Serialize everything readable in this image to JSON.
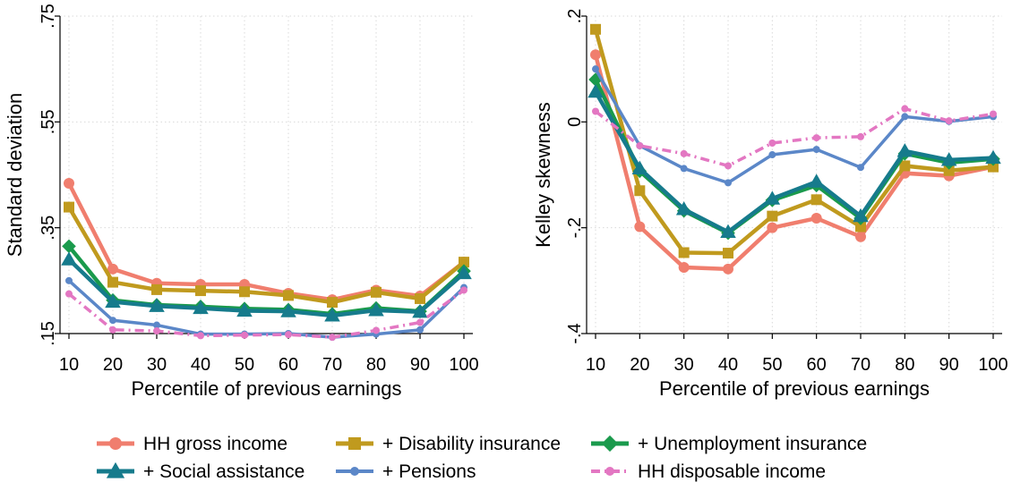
{
  "chart_data": [
    {
      "type": "line",
      "title": "",
      "xlabel": "Percentile of previous earnings",
      "ylabel": "Standard deviation",
      "x": [
        10,
        20,
        30,
        40,
        50,
        60,
        70,
        80,
        90,
        100
      ],
      "xticks": [
        "10",
        "20",
        "30",
        "40",
        "50",
        "60",
        "70",
        "80",
        "90",
        "100"
      ],
      "ylim": [
        0.15,
        0.75
      ],
      "yticks": [
        ".15",
        ".35",
        ".55",
        ".75"
      ],
      "yticks_values": [
        0.15,
        0.35,
        0.55,
        0.75
      ],
      "grid": true,
      "series": [
        {
          "name": "HH gross income",
          "values": [
            0.434,
            0.272,
            0.245,
            0.243,
            0.243,
            0.226,
            0.214,
            0.232,
            0.221,
            0.285
          ]
        },
        {
          "name": "+ Disability insurance",
          "values": [
            0.389,
            0.247,
            0.233,
            0.231,
            0.229,
            0.222,
            0.209,
            0.228,
            0.216,
            0.285
          ]
        },
        {
          "name": "+ Unemployment insurance",
          "values": [
            0.315,
            0.213,
            0.204,
            0.201,
            0.197,
            0.195,
            0.187,
            0.198,
            0.192,
            0.268
          ]
        },
        {
          "name": "+ Social assistance",
          "values": [
            0.29,
            0.21,
            0.202,
            0.198,
            0.193,
            0.192,
            0.184,
            0.194,
            0.191,
            0.264
          ]
        },
        {
          "name": "+ Pensions",
          "values": [
            0.25,
            0.175,
            0.166,
            0.149,
            0.149,
            0.15,
            0.143,
            0.149,
            0.157,
            0.237
          ]
        },
        {
          "name": "HH disposable income",
          "values": [
            0.225,
            0.157,
            0.155,
            0.146,
            0.147,
            0.148,
            0.143,
            0.156,
            0.171,
            0.232
          ]
        }
      ]
    },
    {
      "type": "line",
      "title": "",
      "xlabel": "Percentile of previous earnings",
      "ylabel": "Kelley skewness",
      "x": [
        10,
        20,
        30,
        40,
        50,
        60,
        70,
        80,
        90,
        100
      ],
      "xticks": [
        "10",
        "20",
        "30",
        "40",
        "50",
        "60",
        "70",
        "80",
        "90",
        "100"
      ],
      "ylim": [
        -0.4,
        0.2
      ],
      "yticks": [
        "-.4",
        "-.2",
        "0",
        ".2"
      ],
      "yticks_values": [
        -0.4,
        -0.2,
        0,
        0.2
      ],
      "grid": true,
      "series": [
        {
          "name": "HH gross income",
          "values": [
            0.127,
            -0.198,
            -0.275,
            -0.278,
            -0.2,
            -0.182,
            -0.217,
            -0.097,
            -0.102,
            -0.085
          ]
        },
        {
          "name": "+ Disability insurance",
          "values": [
            0.175,
            -0.13,
            -0.247,
            -0.248,
            -0.178,
            -0.147,
            -0.198,
            -0.083,
            -0.092,
            -0.085
          ]
        },
        {
          "name": "+ Unemployment insurance",
          "values": [
            0.08,
            -0.093,
            -0.168,
            -0.21,
            -0.148,
            -0.12,
            -0.182,
            -0.06,
            -0.077,
            -0.07
          ]
        },
        {
          "name": "+ Social assistance",
          "values": [
            0.057,
            -0.088,
            -0.165,
            -0.208,
            -0.145,
            -0.113,
            -0.178,
            -0.055,
            -0.072,
            -0.068
          ]
        },
        {
          "name": "+ Pensions",
          "values": [
            0.1,
            -0.045,
            -0.088,
            -0.115,
            -0.062,
            -0.052,
            -0.086,
            0.01,
            0.001,
            0.01
          ]
        },
        {
          "name": "HH disposable income",
          "values": [
            0.02,
            -0.045,
            -0.06,
            -0.083,
            -0.04,
            -0.03,
            -0.028,
            0.025,
            0.002,
            0.015
          ]
        }
      ]
    }
  ],
  "legend": {
    "placement": "bottom",
    "items": [
      {
        "label": "HH gross income",
        "color": "#f07e6e",
        "marker": "circle",
        "dash": "solid"
      },
      {
        "label": "+ Disability insurance",
        "color": "#c09a1e",
        "marker": "square",
        "dash": "solid"
      },
      {
        "label": "+ Unemployment insurance",
        "color": "#1a9a4c",
        "marker": "diamond",
        "dash": "solid"
      },
      {
        "label": "+ Social assistance",
        "color": "#167b8c",
        "marker": "triangle",
        "dash": "solid"
      },
      {
        "label": "+ Pensions",
        "color": "#5b87c8",
        "marker": "circle",
        "dash": "solid"
      },
      {
        "label": "HH disposable income",
        "color": "#e377c2",
        "marker": "circle",
        "dash": "dashdot"
      }
    ]
  }
}
